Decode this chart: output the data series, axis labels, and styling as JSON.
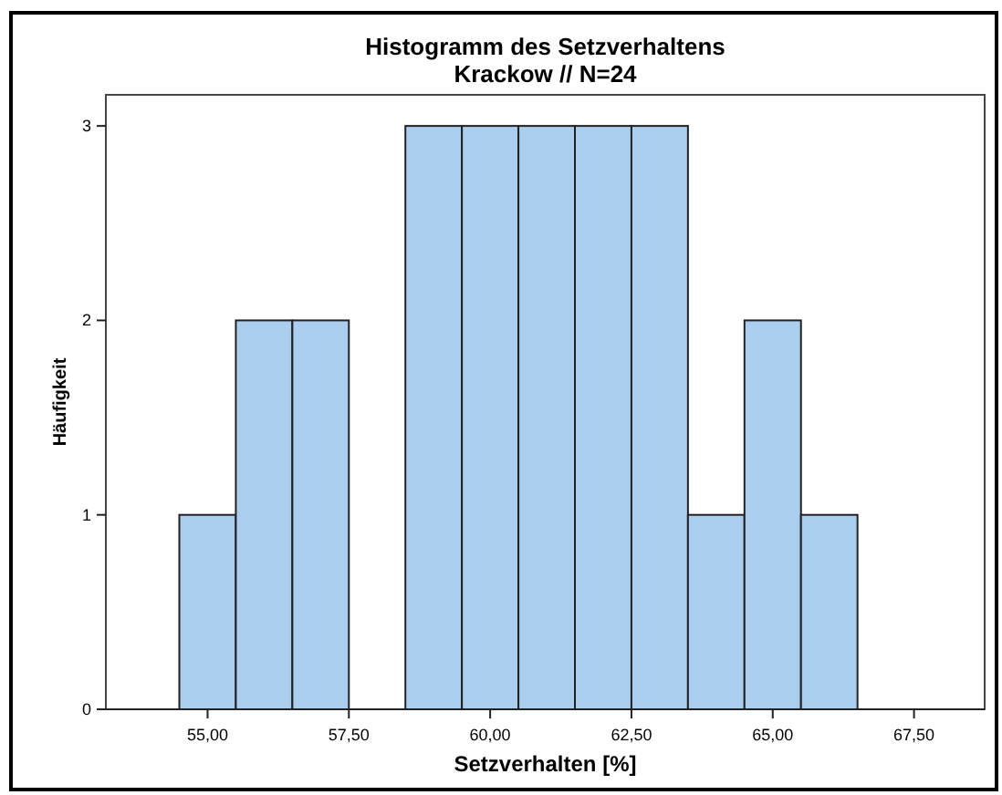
{
  "chart_data": {
    "type": "histogram",
    "title": "Histogramm des Setzverhaltens",
    "subtitle": "Krackow // N=24",
    "xlabel": "Setzverhalten [%]",
    "ylabel": "Häufigkeit",
    "bins": [
      54.5,
      55.5,
      56.5,
      57.5,
      58.5,
      59.5,
      60.5,
      61.5,
      62.5,
      63.5,
      64.5,
      65.5,
      66.5
    ],
    "values": [
      1,
      2,
      2,
      0,
      3,
      3,
      3,
      3,
      3,
      1,
      2,
      1
    ],
    "color": "#abcdee",
    "xlim": [
      53.2,
      68.75
    ],
    "ylim": [
      0,
      3.16
    ],
    "xticks": [
      {
        "value": 55,
        "label": "55,00"
      },
      {
        "value": 57.5,
        "label": "57,50"
      },
      {
        "value": 60,
        "label": "60,00"
      },
      {
        "value": 62.5,
        "label": "62,50"
      },
      {
        "value": 65,
        "label": "65,00"
      },
      {
        "value": 67.5,
        "label": "67,50"
      }
    ],
    "yticks": [
      0,
      1,
      2,
      3
    ],
    "grid": false
  }
}
